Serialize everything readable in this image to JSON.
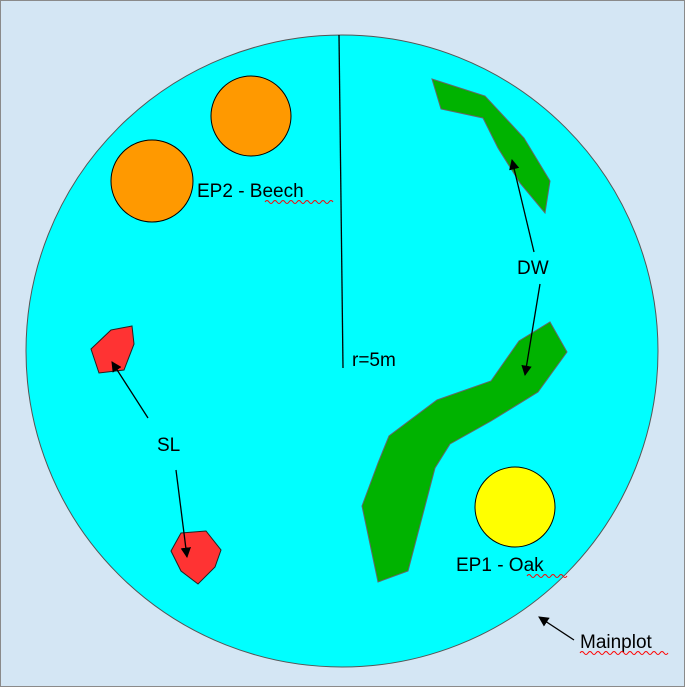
{
  "colors": {
    "background": "#d4e6f4",
    "border": "#8a8a8a",
    "plot_fill": "#00ffff",
    "plot_stroke": "#555555",
    "beech": "#ff9900",
    "oak": "#ffff00",
    "deadwood": "#00b300",
    "sapling": "#ff3333",
    "spellcheck_underline": "#ff0000"
  },
  "plot": {
    "name": "Mainplot",
    "radius_label": "r=5m"
  },
  "trees": {
    "beech": {
      "label": "EP2 - Beech",
      "count": 2
    },
    "oak": {
      "label": "EP1 - Oak",
      "count": 1
    }
  },
  "deadwood": {
    "label": "DW",
    "count": 2
  },
  "saplings": {
    "label": "SL",
    "count": 2
  }
}
